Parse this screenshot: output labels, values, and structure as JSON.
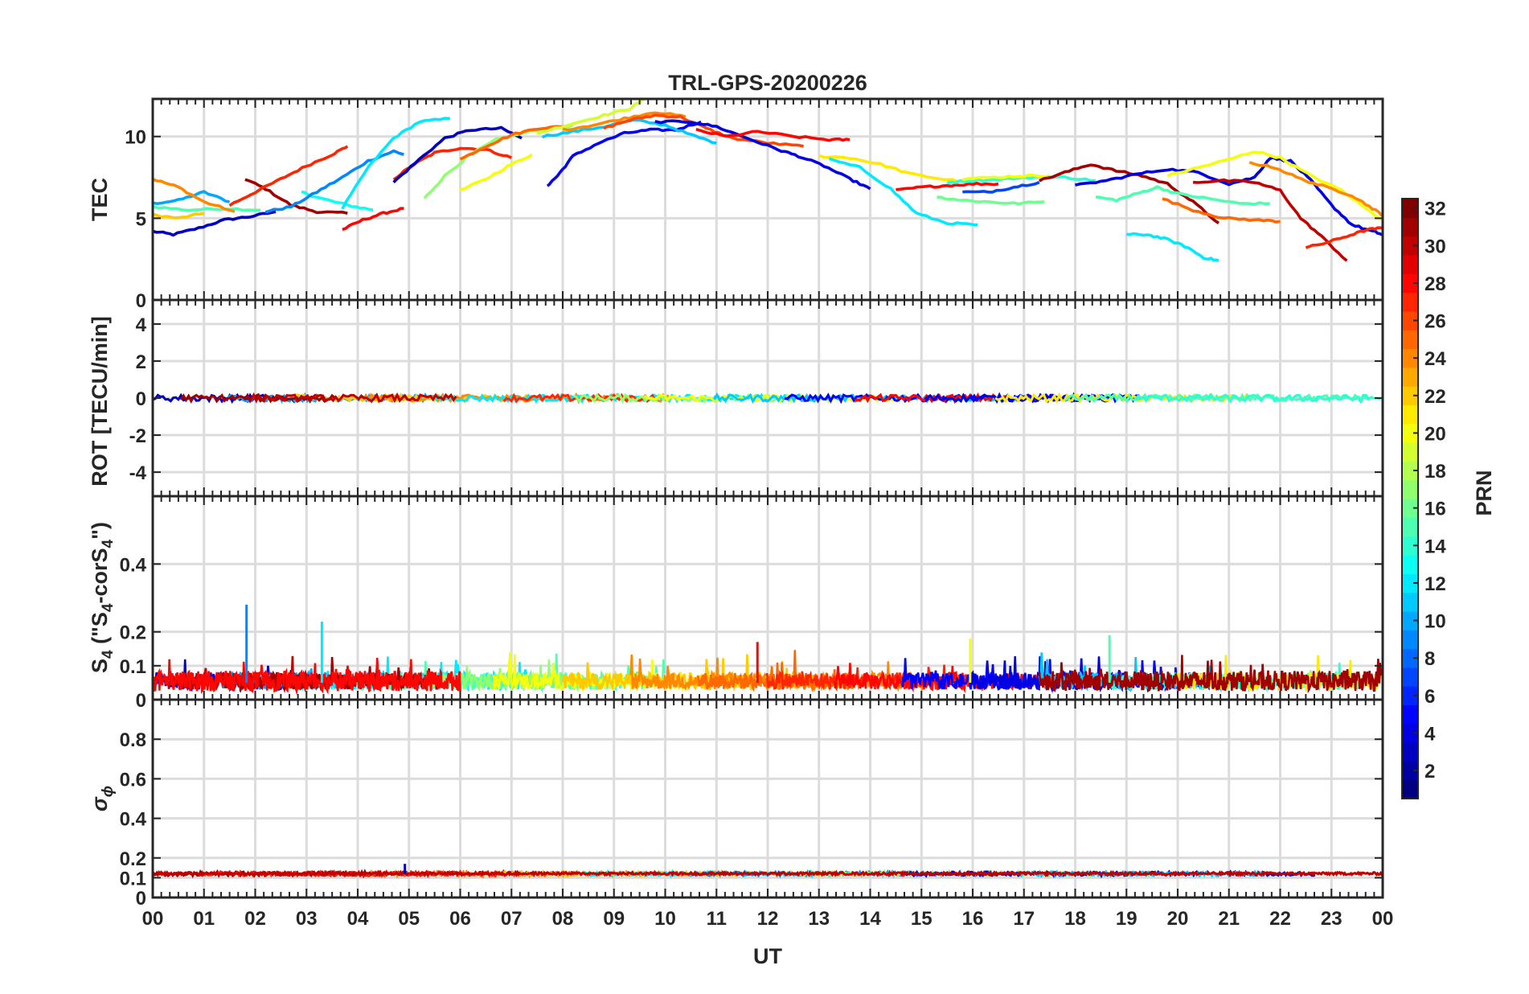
{
  "title": "TRL-GPS-20200226",
  "xlabel": "UT",
  "colorbar": {
    "label": "PRN",
    "min": 1,
    "max": 32,
    "ticks": [
      2,
      4,
      6,
      8,
      10,
      12,
      14,
      16,
      18,
      20,
      22,
      24,
      26,
      28,
      30,
      32
    ],
    "tick_labels": [
      "2",
      "4",
      "6",
      "8",
      "10",
      "12",
      "14",
      "16",
      "18",
      "20",
      "22",
      "24",
      "26",
      "28",
      "30",
      "32"
    ],
    "colormap": "jet"
  },
  "chart_data": [
    {
      "type": "line",
      "name": "tec-panel",
      "ylabel": "TEC",
      "ylim": [
        0,
        12.3
      ],
      "yticks": [
        0,
        5,
        10
      ],
      "ytick_labels": [
        "0",
        "5",
        "10"
      ],
      "xlim": [
        0,
        24
      ],
      "xticks": [
        0,
        1,
        2,
        3,
        4,
        5,
        6,
        7,
        8,
        9,
        10,
        11,
        12,
        13,
        14,
        15,
        16,
        17,
        18,
        19,
        20,
        21,
        22,
        23,
        24
      ],
      "xtick_labels": [
        "00",
        "01",
        "02",
        "03",
        "04",
        "05",
        "06",
        "07",
        "08",
        "09",
        "10",
        "11",
        "12",
        "13",
        "14",
        "15",
        "16",
        "17",
        "18",
        "19",
        "20",
        "21",
        "22",
        "23",
        "00"
      ],
      "series": [
        {
          "prn": 3,
          "x": [
            0,
            0.4,
            0.9,
            1.4,
            1.9,
            2.4
          ],
          "y": [
            4.2,
            4.0,
            4.4,
            4.9,
            5.1,
            5.4
          ]
        },
        {
          "prn": 10,
          "x": [
            0,
            0.5,
            1.0,
            1.5
          ],
          "y": [
            5.9,
            6.1,
            6.6,
            6.0
          ]
        },
        {
          "prn": 15,
          "x": [
            0,
            0.7,
            1.4,
            2.1
          ],
          "y": [
            5.7,
            5.5,
            5.6,
            5.5
          ]
        },
        {
          "prn": 24,
          "x": [
            0,
            0.5,
            1.0,
            1.6
          ],
          "y": [
            7.4,
            6.9,
            6.0,
            5.4
          ]
        },
        {
          "prn": 22,
          "x": [
            0,
            0.5,
            1.0
          ],
          "y": [
            5.2,
            5.0,
            5.3
          ]
        },
        {
          "prn": 31,
          "x": [
            1.8,
            2.2,
            2.7,
            3.2,
            3.8
          ],
          "y": [
            7.4,
            6.8,
            5.8,
            5.4,
            5.3
          ]
        },
        {
          "prn": 13,
          "x": [
            2.9,
            3.3,
            3.8,
            4.3
          ],
          "y": [
            6.6,
            6.2,
            5.8,
            5.5
          ]
        },
        {
          "prn": 27,
          "x": [
            1.5,
            2.0,
            2.5,
            3.0,
            3.5,
            3.8
          ],
          "y": [
            5.8,
            6.6,
            7.4,
            8.2,
            8.9,
            9.4
          ]
        },
        {
          "prn": 9,
          "x": [
            2.2,
            2.7,
            3.2,
            3.7,
            4.2,
            4.7,
            4.9
          ],
          "y": [
            5.4,
            5.7,
            6.6,
            7.5,
            8.5,
            9.1,
            8.9
          ]
        },
        {
          "prn": 28,
          "x": [
            3.7,
            4.1,
            4.5,
            4.9
          ],
          "y": [
            4.3,
            4.9,
            5.3,
            5.6
          ]
        },
        {
          "prn": 12,
          "x": [
            3.7,
            4.2,
            4.7,
            5.2,
            5.8
          ],
          "y": [
            5.6,
            8.1,
            9.9,
            10.9,
            11.1
          ]
        },
        {
          "prn": 27,
          "x": [
            4.7,
            5.1,
            5.5,
            6.0,
            6.5,
            7.0
          ],
          "y": [
            7.4,
            8.3,
            9.0,
            9.3,
            9.2,
            8.7
          ]
        },
        {
          "prn": 3,
          "x": [
            4.7,
            5.2,
            5.7,
            6.2,
            6.8,
            7.2
          ],
          "y": [
            7.2,
            8.6,
            9.9,
            10.4,
            10.5,
            9.9
          ]
        },
        {
          "prn": 17,
          "x": [
            5.3,
            5.7,
            6.2,
            6.7,
            7.2,
            7.7,
            8.2
          ],
          "y": [
            6.2,
            7.6,
            8.9,
            9.8,
            10.2,
            10.5,
            10.7
          ]
        },
        {
          "prn": 20,
          "x": [
            6.0,
            6.5,
            7.0,
            7.4
          ],
          "y": [
            6.7,
            7.4,
            8.3,
            8.9
          ]
        },
        {
          "prn": 25,
          "x": [
            6.0,
            6.5,
            7.0,
            7.5,
            8.0
          ],
          "y": [
            8.6,
            9.4,
            10.1,
            10.5,
            10.6
          ]
        },
        {
          "prn": 19,
          "x": [
            7.5,
            8.2,
            8.8,
            9.3,
            9.6
          ],
          "y": [
            10.2,
            10.8,
            11.3,
            11.7,
            12.3
          ]
        },
        {
          "prn": 5,
          "x": [
            7.7,
            7.9,
            8.2,
            8.7,
            9.2,
            9.7,
            10.2,
            10.7
          ],
          "y": [
            7.0,
            7.6,
            8.8,
            9.6,
            10.2,
            10.4,
            10.4,
            10.9
          ]
        },
        {
          "prn": 11,
          "x": [
            7.6,
            8.2,
            8.8,
            9.4,
            10.0,
            10.5,
            11.0
          ],
          "y": [
            10.0,
            10.3,
            10.6,
            11.0,
            10.7,
            10.1,
            9.6
          ]
        },
        {
          "prn": 24,
          "x": [
            8.0,
            8.6,
            9.2,
            9.8,
            10.4
          ],
          "y": [
            10.4,
            10.7,
            11.1,
            11.5,
            11.2
          ]
        },
        {
          "prn": 26,
          "x": [
            8.8,
            9.3,
            9.8,
            10.3,
            10.8,
            11.3,
            12.0,
            12.7
          ],
          "y": [
            10.5,
            11.0,
            11.3,
            11.2,
            10.5,
            9.9,
            9.6,
            9.4
          ]
        },
        {
          "prn": 4,
          "x": [
            9.8,
            10.5,
            11.0,
            11.6,
            12.2,
            12.6,
            13.1,
            13.6,
            14.0
          ],
          "y": [
            10.9,
            10.9,
            10.6,
            9.9,
            9.2,
            8.8,
            8.2,
            7.4,
            6.8
          ]
        },
        {
          "prn": 28,
          "x": [
            10.6,
            11.2,
            11.8,
            12.5,
            13.2,
            13.6
          ],
          "y": [
            10.4,
            10.0,
            10.3,
            10.0,
            9.8,
            9.8
          ]
        },
        {
          "prn": 21,
          "x": [
            13.0,
            13.6,
            14.2,
            14.8,
            15.4,
            16.0
          ],
          "y": [
            8.8,
            8.7,
            8.3,
            7.7,
            7.4,
            7.2
          ]
        },
        {
          "prn": 12,
          "x": [
            13.2,
            13.8,
            14.4,
            14.9,
            15.5,
            16.1
          ],
          "y": [
            8.6,
            8.1,
            6.8,
            5.3,
            4.7,
            4.6
          ]
        },
        {
          "prn": 28,
          "x": [
            14.5,
            15.0,
            15.5,
            16.0,
            16.5
          ],
          "y": [
            6.7,
            6.9,
            7.0,
            7.1,
            7.1
          ]
        },
        {
          "prn": 16,
          "x": [
            15.3,
            15.8,
            16.3,
            16.8,
            17.4
          ],
          "y": [
            6.3,
            6.1,
            6.0,
            5.9,
            6.0
          ]
        },
        {
          "prn": 14,
          "x": [
            15.5,
            16.0,
            16.6,
            17.2,
            17.8,
            18.4
          ],
          "y": [
            7.2,
            7.3,
            7.4,
            7.5,
            7.5,
            7.3
          ]
        },
        {
          "prn": 7,
          "x": [
            15.8,
            16.3,
            16.8,
            17.3
          ],
          "y": [
            6.6,
            6.6,
            6.9,
            7.2
          ]
        },
        {
          "prn": 20,
          "x": [
            15.8,
            16.4,
            17.0,
            17.5
          ],
          "y": [
            7.4,
            7.5,
            7.6,
            7.6
          ]
        },
        {
          "prn": 31,
          "x": [
            17.3,
            17.8,
            18.3,
            18.8,
            19.3,
            19.8,
            20.3,
            20.8
          ],
          "y": [
            7.3,
            7.8,
            8.3,
            7.9,
            7.6,
            7.1,
            6.0,
            4.7
          ]
        },
        {
          "prn": 4,
          "x": [
            18.0,
            18.6,
            19.2,
            19.8,
            20.4,
            21.0,
            21.5,
            21.8,
            22.2,
            22.6,
            23.0,
            23.4,
            23.8,
            24.0
          ],
          "y": [
            7.0,
            7.3,
            7.7,
            8.0,
            7.8,
            7.1,
            7.5,
            8.7,
            8.5,
            7.3,
            5.8,
            4.6,
            4.2,
            4.0
          ]
        },
        {
          "prn": 12,
          "x": [
            19.0,
            19.4,
            19.8,
            20.2,
            20.5,
            20.8
          ],
          "y": [
            4.0,
            4.0,
            3.7,
            3.2,
            2.6,
            2.4
          ]
        },
        {
          "prn": 15,
          "x": [
            18.4,
            18.8,
            19.2,
            19.6,
            20.0,
            20.6,
            21.2,
            21.8
          ],
          "y": [
            6.3,
            6.1,
            6.5,
            6.9,
            6.5,
            6.2,
            5.9,
            5.9
          ]
        },
        {
          "prn": 20,
          "x": [
            19.8,
            20.4,
            21.0,
            21.5,
            22.0,
            22.6,
            23.2,
            23.8,
            24.0
          ],
          "y": [
            7.6,
            8.1,
            8.6,
            9.1,
            8.7,
            7.6,
            6.7,
            5.3,
            4.9
          ]
        },
        {
          "prn": 25,
          "x": [
            19.7,
            20.3,
            20.9,
            21.5,
            22.0
          ],
          "y": [
            6.2,
            5.5,
            5.0,
            4.9,
            4.8
          ]
        },
        {
          "prn": 30,
          "x": [
            20.3,
            20.9,
            21.5,
            22.0,
            22.4,
            22.8,
            23.3
          ],
          "y": [
            7.2,
            7.3,
            7.2,
            6.7,
            5.0,
            3.9,
            2.4
          ]
        },
        {
          "prn": 27,
          "x": [
            22.5,
            22.9,
            23.3,
            23.7,
            24.0
          ],
          "y": [
            3.2,
            3.5,
            3.9,
            4.3,
            4.4
          ]
        },
        {
          "prn": 24,
          "x": [
            21.4,
            21.9,
            22.4,
            22.9,
            23.4,
            23.8,
            24.0
          ],
          "y": [
            8.4,
            8.1,
            7.4,
            6.9,
            6.4,
            5.6,
            5.2
          ]
        }
      ]
    },
    {
      "type": "line",
      "name": "rot-panel",
      "ylabel": "ROT [TECU/min]",
      "ylim": [
        -5.3,
        5.3
      ],
      "yticks": [
        -4,
        -2,
        0,
        2,
        4
      ],
      "ytick_labels": [
        "-4",
        "-2",
        "0",
        "2",
        "4"
      ],
      "xlim": [
        0,
        24
      ],
      "typical_values": "near 0, within about ±0.3 TECU/min for all PRNs"
    },
    {
      "type": "line",
      "name": "s4-panel",
      "ylabel": "S4 (\"S4-corS4\")",
      "ylabel_main": "S",
      "ylabel_sub": "4",
      "ylabel_rest": " (\"S",
      "ylabel_sub2": "4",
      "ylabel_end": "-corS",
      "ylabel_sub3": "4",
      "ylabel_close": "\")",
      "ylim": [
        0,
        0.6
      ],
      "yticks": [
        0,
        0.1,
        0.2,
        0.4
      ],
      "ytick_labels": [
        "0",
        "0.1",
        "0.2",
        "0.4"
      ],
      "xlim": [
        0,
        24
      ],
      "typical_values": "mostly 0.02–0.10, spikes to about 0.18",
      "peaks": [
        {
          "x": 1.83,
          "y": 0.28,
          "prn": 9
        },
        {
          "x": 3.3,
          "y": 0.23,
          "prn": 12
        },
        {
          "x": 18.67,
          "y": 0.19,
          "prn": 15
        },
        {
          "x": 15.95,
          "y": 0.18,
          "prn": 20
        },
        {
          "x": 11.8,
          "y": 0.17,
          "prn": 28
        }
      ]
    },
    {
      "type": "line",
      "name": "sigma-phi-panel",
      "ylabel": "σ",
      "ylabel_sub": "ϕ",
      "ylim": [
        0,
        1.0
      ],
      "yticks": [
        0,
        0.1,
        0.2,
        0.4,
        0.6,
        0.8
      ],
      "ytick_labels": [
        "0",
        "0.1",
        "0.2",
        "0.4",
        "0.6",
        "0.8"
      ],
      "xlim": [
        0,
        24
      ],
      "typical_values": "about 0.10–0.13, peak near 0.17 at 04:55"
    }
  ]
}
